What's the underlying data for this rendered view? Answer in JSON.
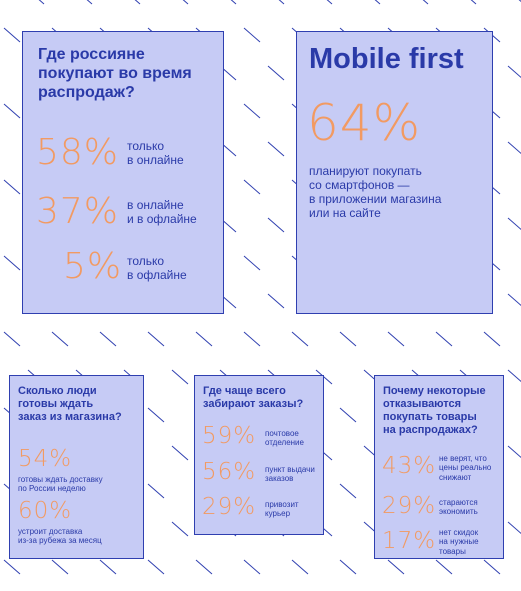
{
  "card1": {
    "title": "Где россияне\nпокупают во время\nраспродаж?",
    "stats": [
      {
        "value": "58%",
        "label": "только\nв онлайне"
      },
      {
        "value": "37%",
        "label": "в онлайне\nи в офлайне"
      },
      {
        "value": "5%",
        "label": "только\nв офлайне"
      }
    ]
  },
  "card2": {
    "title": "Mobile first",
    "value": "64%",
    "label": "планируют покупать\nсо смартфонов —\nв приложении магазина\nили на сайте"
  },
  "card3": {
    "title": "Сколько люди\nготовы ждать\nзаказ из магазина?",
    "stats": [
      {
        "value": "54%",
        "label": "готовы ждать доставку\nпо России неделю"
      },
      {
        "value": "60%",
        "label": "устроит доставка\nиз-за рубежа за месяц"
      }
    ]
  },
  "card4": {
    "title": "Где чаще всего\nзабирают заказы?",
    "stats": [
      {
        "value": "59%",
        "label": "почтовое\nотделение"
      },
      {
        "value": "56%",
        "label": "пункт выдачи\nзаказов"
      },
      {
        "value": "29%",
        "label": "привозит\nкурьер"
      }
    ]
  },
  "card5": {
    "title": "Почему некоторые\nотказываются\nпокупать товары\nна распродажах?",
    "stats": [
      {
        "value": "43%",
        "label": "не верят, что\nцены реально\nснижают"
      },
      {
        "value": "29%",
        "label": "стараются\nэкономить"
      },
      {
        "value": "17%",
        "label": "нет скидок\nна нужные\nтовары"
      }
    ]
  },
  "colors": {
    "card_bg": "#c6cbf5",
    "text": "#2a3aa8",
    "accent": "#f29a62",
    "dash": "#2f3fb0"
  }
}
